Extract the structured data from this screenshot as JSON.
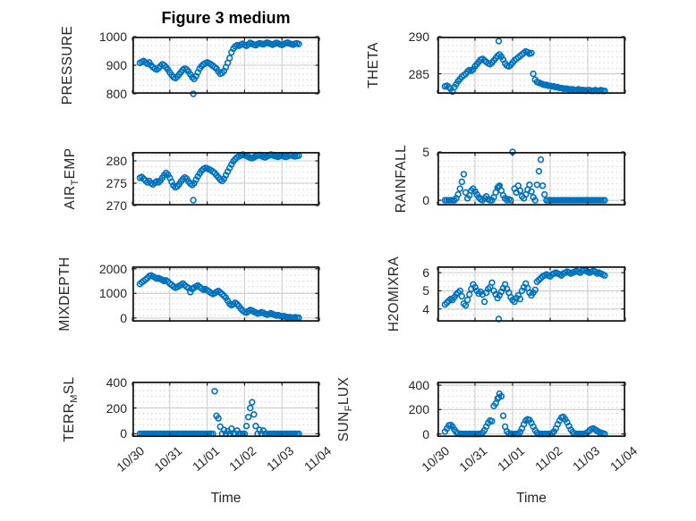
{
  "figure": {
    "title": "Figure 3 medium",
    "xlabel": "Time"
  },
  "style": {
    "marker_color": "#0072BD",
    "axis_color": "#1a1a1a",
    "grid_color": "#cdcdcd",
    "minor_dot_color": "#c6c6c6",
    "text_color": "#262626"
  },
  "chart_data": {
    "type": "scatter",
    "title": "Figure 3 medium",
    "xlabel": "Time",
    "legend": "none",
    "grid": "major solid, minor dotted",
    "x_tick_labels": [
      "10/30",
      "10/31",
      "11/01",
      "11/02",
      "11/03",
      "11/04"
    ],
    "x_tick_values": [
      0,
      1,
      2,
      3,
      4,
      5
    ],
    "x_range_days": [
      0,
      5
    ],
    "x_days": [
      0.2,
      0.25,
      0.3,
      0.35,
      0.4,
      0.45,
      0.5,
      0.55,
      0.6,
      0.65,
      0.7,
      0.75,
      0.8,
      0.85,
      0.9,
      0.95,
      1,
      1.05,
      1.1,
      1.15,
      1.2,
      1.25,
      1.3,
      1.35,
      1.4,
      1.45,
      1.5,
      1.55,
      1.6,
      1.65,
      1.7,
      1.75,
      1.8,
      1.85,
      1.9,
      1.95,
      2,
      2.05,
      2.1,
      2.15,
      2.2,
      2.25,
      2.3,
      2.35,
      2.4,
      2.45,
      2.5,
      2.55,
      2.6,
      2.65,
      2.7,
      2.75,
      2.8,
      2.85,
      2.9,
      2.95,
      3,
      3.05,
      3.1,
      3.15,
      3.2,
      3.25,
      3.3,
      3.35,
      3.4,
      3.45,
      3.5,
      3.55,
      3.6,
      3.65,
      3.7,
      3.75,
      3.8,
      3.85,
      3.9,
      3.95,
      4,
      4.05,
      4.1,
      4.15,
      4.2,
      4.25,
      4.3,
      4.35,
      4.4,
      4.45,
      1.63
    ],
    "subplots": [
      {
        "name": "PRESSURE",
        "ylabel": {
          "pre": "PRESSURE",
          "sub": "",
          "post": ""
        },
        "y_ticks": [
          800,
          900,
          1000
        ],
        "ylim": [
          800,
          1000
        ],
        "y": [
          908,
          912,
          915,
          910,
          905,
          910,
          900,
          893,
          888,
          885,
          890,
          897,
          903,
          900,
          893,
          885,
          875,
          866,
          858,
          855,
          860,
          868,
          876,
          884,
          888,
          885,
          878,
          868,
          858,
          852,
          862,
          875,
          888,
          897,
          903,
          907,
          910,
          907,
          903,
          898,
          893,
          888,
          878,
          870,
          873,
          880,
          893,
          908,
          925,
          945,
          958,
          966,
          970,
          968,
          972,
          975,
          971,
          968,
          973,
          978,
          975,
          972,
          970,
          974,
          977,
          975,
          973,
          976,
          979,
          977,
          974,
          972,
          975,
          978,
          976,
          973,
          971,
          974,
          977,
          979,
          976,
          974,
          972,
          975,
          977,
          974,
          800
        ]
      },
      {
        "name": "THETA",
        "ylabel": {
          "pre": "THETA",
          "sub": "",
          "post": ""
        },
        "y_ticks": [
          285,
          290
        ],
        "ylim": [
          282.3,
          290
        ],
        "y": [
          283.3,
          283.4,
          283.2,
          283.0,
          282.6,
          283.2,
          283.6,
          284.0,
          284.3,
          284.6,
          284.8,
          285.0,
          285.3,
          285.5,
          285.4,
          285.6,
          286.0,
          286.3,
          286.6,
          286.9,
          287.0,
          286.8,
          286.6,
          286.4,
          286.3,
          286.5,
          286.8,
          287.1,
          287.4,
          287.6,
          287.3,
          286.9,
          286.4,
          286.1,
          286.0,
          286.2,
          286.5,
          286.8,
          287.0,
          287.2,
          287.4,
          287.6,
          287.8,
          288.0,
          287.9,
          287.7,
          287.8,
          285.0,
          284.2,
          283.9,
          283.8,
          283.7,
          283.6,
          283.5,
          283.5,
          283.4,
          283.4,
          283.3,
          283.3,
          283.2,
          283.2,
          283.1,
          283.1,
          283.0,
          283.0,
          283.0,
          282.9,
          282.9,
          282.9,
          282.8,
          282.8,
          282.9,
          282.8,
          282.8,
          282.8,
          282.7,
          282.8,
          282.8,
          282.7,
          282.7,
          282.8,
          282.7,
          282.7,
          282.8,
          282.7,
          282.7,
          289.4
        ]
      },
      {
        "name": "AIR_TEMP",
        "ylabel": {
          "pre": "AIR",
          "sub": "T",
          "post": "EMP"
        },
        "y_ticks": [
          270,
          275,
          280
        ],
        "ylim": [
          270,
          282
        ],
        "y": [
          276.2,
          276.4,
          276.0,
          275.6,
          275.2,
          275.5,
          275.0,
          274.7,
          275.1,
          275.4,
          275.2,
          275.6,
          276.2,
          276.8,
          277.3,
          276.9,
          276.2,
          275.3,
          274.5,
          274.1,
          274.3,
          274.8,
          275.4,
          275.9,
          276.3,
          276.0,
          275.4,
          274.9,
          274.6,
          275.0,
          275.8,
          276.5,
          277.2,
          277.8,
          278.2,
          278.4,
          278.3,
          278.1,
          277.9,
          277.6,
          277.3,
          276.8,
          276.3,
          275.8,
          275.5,
          276.0,
          276.8,
          277.6,
          278.4,
          279.2,
          279.9,
          280.4,
          280.8,
          281.0,
          281.2,
          281.4,
          281.3,
          281.1,
          280.9,
          280.7,
          280.6,
          280.8,
          281.0,
          281.2,
          281.3,
          281.1,
          280.9,
          280.8,
          281.0,
          281.2,
          281.4,
          281.3,
          281.1,
          281.0,
          280.9,
          281.1,
          281.2,
          281.0,
          280.9,
          281.0,
          281.2,
          281.3,
          281.1,
          281.0,
          281.1,
          281.2,
          271.2
        ]
      },
      {
        "name": "RAINFALL",
        "ylabel": {
          "pre": "RAINFALL",
          "sub": "",
          "post": ""
        },
        "y_ticks": [
          0,
          5
        ],
        "ylim": [
          -0.55,
          5
        ],
        "y": [
          0,
          0,
          0,
          0,
          0,
          0,
          0.2,
          0.6,
          1.2,
          1.9,
          2.7,
          0.8,
          0.2,
          0.5,
          1.0,
          1.2,
          0.9,
          0.6,
          0.3,
          0.1,
          0,
          0.2,
          0.4,
          0.1,
          0,
          0,
          0.3,
          0.8,
          1.3,
          1.5,
          1.0,
          0.5,
          0.2,
          0,
          0.1,
          0,
          5.0,
          1.2,
          0.8,
          1.5,
          1.0,
          0.4,
          0.2,
          0.6,
          1.1,
          1.6,
          0.9,
          0.3,
          0,
          1.6,
          3.0,
          4.2,
          1.5,
          0.6,
          0,
          0,
          0,
          0,
          0,
          0,
          0,
          0,
          0,
          0,
          0,
          0,
          0,
          0,
          0,
          0,
          0,
          0,
          0,
          0,
          0,
          0,
          0,
          0,
          0,
          0,
          0,
          0,
          0,
          0,
          0,
          0,
          1.4
        ]
      },
      {
        "name": "MIXDEPTH",
        "ylabel": {
          "pre": "MIXDEPTH",
          "sub": "",
          "post": ""
        },
        "y_ticks": [
          0,
          1000,
          2000
        ],
        "ylim": [
          -150,
          2100
        ],
        "y": [
          1380,
          1450,
          1500,
          1560,
          1620,
          1700,
          1730,
          1690,
          1650,
          1600,
          1620,
          1580,
          1550,
          1500,
          1530,
          1480,
          1400,
          1350,
          1280,
          1230,
          1260,
          1300,
          1350,
          1400,
          1330,
          1270,
          1220,
          1050,
          1180,
          1240,
          1280,
          1320,
          1260,
          1200,
          1150,
          1180,
          1130,
          1080,
          1020,
          980,
          1010,
          1060,
          1100,
          1040,
          970,
          900,
          820,
          700,
          580,
          520,
          560,
          620,
          560,
          480,
          380,
          300,
          250,
          220,
          280,
          330,
          300,
          260,
          220,
          180,
          200,
          240,
          210,
          170,
          140,
          160,
          190,
          160,
          130,
          100,
          120,
          90,
          60,
          80,
          50,
          30,
          40,
          20,
          10,
          30,
          20,
          10,
          1210
        ]
      },
      {
        "name": "H2OMIXRA",
        "ylabel": {
          "pre": "H2OMIXRA",
          "sub": "",
          "post": ""
        },
        "y_ticks": [
          4,
          5,
          6
        ],
        "ylim": [
          3.3,
          6.35
        ],
        "y": [
          4.25,
          4.35,
          4.45,
          4.55,
          4.5,
          4.65,
          4.8,
          4.9,
          5.0,
          4.7,
          4.3,
          4.2,
          4.5,
          4.8,
          5.1,
          5.35,
          5.2,
          5.0,
          4.85,
          4.95,
          4.8,
          4.4,
          4.9,
          5.1,
          5.2,
          5.45,
          5.0,
          4.8,
          4.6,
          4.75,
          4.95,
          5.15,
          5.35,
          5.1,
          4.9,
          4.65,
          4.5,
          4.4,
          4.6,
          4.75,
          4.55,
          5.0,
          5.2,
          5.4,
          5.15,
          4.9,
          4.75,
          4.9,
          5.05,
          5.5,
          5.6,
          5.7,
          5.8,
          5.85,
          5.9,
          5.85,
          5.8,
          5.9,
          5.95,
          6.0,
          5.95,
          5.9,
          5.85,
          5.95,
          6.0,
          6.05,
          6.0,
          5.95,
          6.0,
          6.05,
          6.1,
          6.05,
          6.0,
          6.1,
          6.15,
          6.1,
          6.05,
          6.0,
          6.05,
          6.1,
          6.05,
          5.95,
          6.0,
          5.95,
          5.9,
          5.85,
          3.45
        ]
      },
      {
        "name": "TERR_MSL",
        "ylabel": {
          "pre": "TERR",
          "sub": "M",
          "post": "SL"
        },
        "y_ticks": [
          0,
          200,
          400
        ],
        "ylim": [
          -25,
          405
        ],
        "y": [
          0,
          0,
          0,
          0,
          0,
          0,
          0,
          0,
          0,
          0,
          0,
          0,
          0,
          0,
          0,
          0,
          0,
          0,
          0,
          0,
          0,
          0,
          0,
          0,
          0,
          0,
          0,
          0,
          0,
          0,
          0,
          0,
          0,
          0,
          0,
          0,
          0,
          0,
          0,
          0,
          330,
          140,
          120,
          55,
          0,
          30,
          0,
          20,
          0,
          40,
          0,
          0,
          25,
          0,
          0,
          0,
          0,
          60,
          130,
          200,
          245,
          150,
          60,
          0,
          30,
          0,
          25,
          0,
          0,
          0,
          0,
          0,
          0,
          0,
          0,
          0,
          0,
          0,
          0,
          0,
          0,
          0,
          0,
          0,
          0,
          0,
          0
        ]
      },
      {
        "name": "SUN_FLUX",
        "ylabel": {
          "pre": "SUN",
          "sub": "F",
          "post": "LUX"
        },
        "y_ticks": [
          0,
          200,
          400
        ],
        "ylim": [
          -25,
          430
        ],
        "y": [
          20,
          45,
          70,
          75,
          60,
          35,
          15,
          5,
          0,
          0,
          0,
          0,
          0,
          0,
          0,
          0,
          0,
          0,
          0,
          0,
          10,
          30,
          60,
          90,
          110,
          105,
          230,
          250,
          290,
          330,
          310,
          150,
          60,
          20,
          5,
          0,
          0,
          0,
          0,
          0,
          15,
          45,
          80,
          110,
          120,
          115,
          90,
          60,
          30,
          10,
          0,
          0,
          0,
          0,
          0,
          0,
          0,
          5,
          20,
          45,
          80,
          110,
          135,
          140,
          120,
          95,
          65,
          35,
          15,
          5,
          0,
          0,
          0,
          0,
          0,
          5,
          15,
          30,
          40,
          45,
          35,
          25,
          15,
          10,
          5,
          0,
          300
        ]
      }
    ]
  }
}
